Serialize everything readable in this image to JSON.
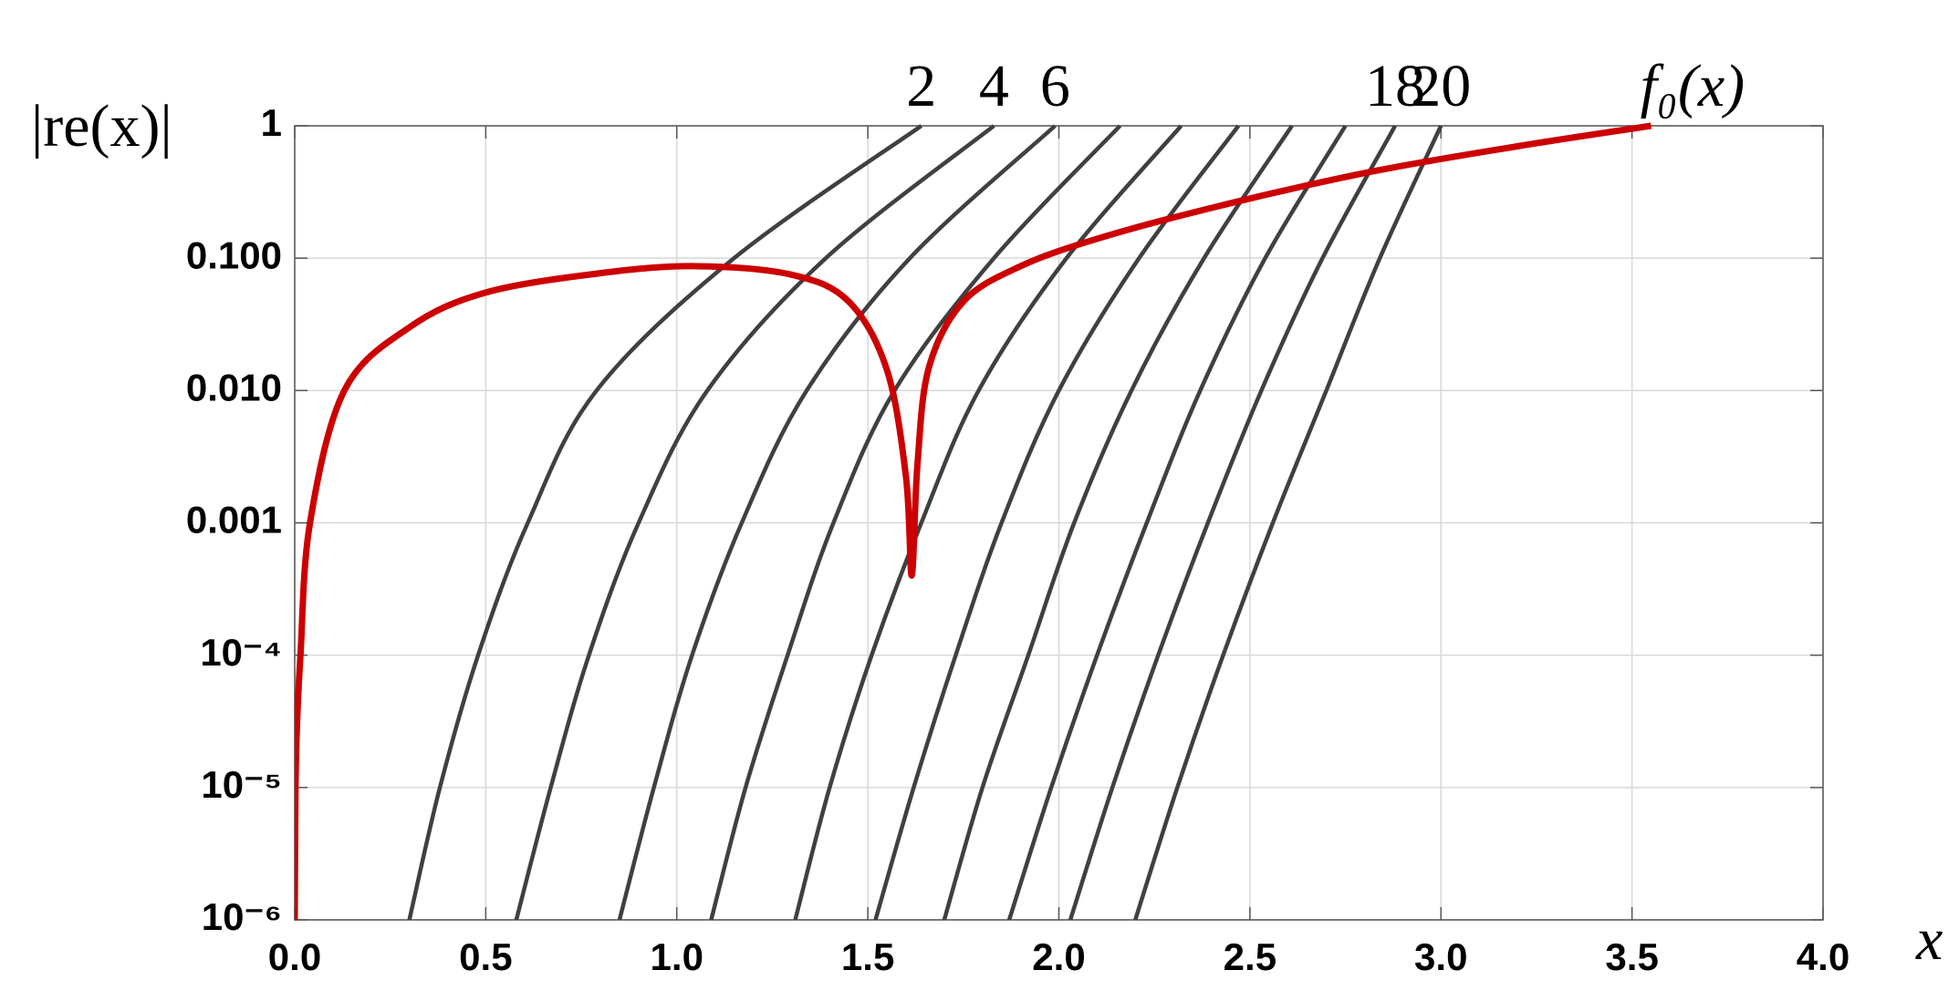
{
  "chart_data": {
    "type": "line",
    "y_label": "|re(x)|",
    "x_label": "x",
    "log_y": true,
    "grid": true,
    "xlim": [
      0,
      4
    ],
    "ylim": [
      1e-06,
      1
    ],
    "xticks": [
      {
        "value": 0,
        "label": "0.0"
      },
      0.5,
      {
        "value": 1,
        "label": "1.0"
      },
      1.5,
      {
        "value": 2,
        "label": "2.0"
      },
      2.5,
      {
        "value": 3,
        "label": "3.0"
      },
      3.5,
      {
        "value": 4,
        "label": "4.0"
      }
    ],
    "yticks": [
      {
        "value": 1e-06,
        "label": "10⁻⁶"
      },
      {
        "value": 1e-05,
        "label": "10⁻⁵"
      },
      {
        "value": 0.0001,
        "label": "10⁻⁴"
      },
      {
        "value": 0.001,
        "label": "0.001"
      },
      {
        "value": 0.01,
        "label": "0.010"
      },
      {
        "value": 0.1,
        "label": "0.100"
      },
      1
    ],
    "series": [
      {
        "name": "2",
        "color": "#404040",
        "x": [
          0.3,
          0.38,
          0.48,
          0.61,
          0.79,
          1.15,
          1.64
        ],
        "values": [
          1e-06,
          1e-05,
          0.0001,
          0.001,
          0.01,
          0.1,
          1
        ]
      },
      {
        "name": "4",
        "color": "#404040",
        "x": [
          0.58,
          0.67,
          0.77,
          0.9,
          1.08,
          1.39,
          1.83
        ],
        "values": [
          1e-06,
          1e-05,
          0.0001,
          0.001,
          0.01,
          0.1,
          1
        ]
      },
      {
        "name": "6",
        "color": "#404040",
        "x": [
          0.85,
          0.94,
          1.04,
          1.17,
          1.34,
          1.61,
          1.99
        ],
        "values": [
          1e-06,
          1e-05,
          0.0001,
          0.001,
          0.01,
          0.1,
          1
        ]
      },
      {
        "color": "#404040",
        "x": [
          1.09,
          1.18,
          1.29,
          1.41,
          1.57,
          1.83,
          2.16
        ],
        "values": [
          1e-06,
          1e-05,
          0.0001,
          0.001,
          0.01,
          0.1,
          1
        ]
      },
      {
        "color": "#404040",
        "x": [
          1.31,
          1.4,
          1.51,
          1.64,
          1.79,
          2.02,
          2.32
        ],
        "values": [
          1e-06,
          1e-05,
          0.0001,
          0.001,
          0.01,
          0.1,
          1
        ]
      },
      {
        "color": "#404040",
        "x": [
          1.52,
          1.62,
          1.73,
          1.85,
          2.0,
          2.21,
          2.47
        ],
        "values": [
          1e-06,
          1e-05,
          0.0001,
          0.001,
          0.01,
          0.1,
          1
        ]
      },
      {
        "color": "#404040",
        "x": [
          1.7,
          1.8,
          1.92,
          2.04,
          2.19,
          2.38,
          2.61
        ],
        "values": [
          1e-06,
          1e-05,
          0.0001,
          0.001,
          0.01,
          0.1,
          1
        ]
      },
      {
        "color": "#404040",
        "x": [
          1.87,
          1.98,
          2.1,
          2.23,
          2.37,
          2.54,
          2.75
        ],
        "values": [
          1e-06,
          1e-05,
          0.0001,
          0.001,
          0.01,
          0.1,
          1
        ]
      },
      {
        "name": "18",
        "color": "#404040",
        "x": [
          2.03,
          2.14,
          2.26,
          2.39,
          2.53,
          2.69,
          2.88
        ],
        "values": [
          1e-06,
          1e-05,
          0.0001,
          0.001,
          0.01,
          0.1,
          1
        ]
      },
      {
        "name": "20",
        "color": "#404040",
        "x": [
          2.2,
          2.31,
          2.43,
          2.56,
          2.7,
          2.84,
          3.0
        ],
        "values": [
          1e-06,
          1e-05,
          0.0001,
          0.001,
          0.01,
          0.1,
          1
        ]
      },
      {
        "name": "f₀(x)",
        "color": "#cc0000",
        "x": [
          0,
          0.002,
          0.006,
          0.015,
          0.04,
          0.13,
          0.3,
          0.5,
          0.8,
          1.05,
          1.3,
          1.45,
          1.55,
          1.6,
          1.615,
          1.63,
          1.66,
          1.75,
          1.9,
          2.1,
          2.4,
          2.8,
          3.2,
          3.55
        ],
        "values": [
          1e-06,
          1e-05,
          3e-05,
          0.0001,
          0.001,
          0.01,
          0.03,
          0.055,
          0.077,
          0.087,
          0.075,
          0.047,
          0.0143,
          0.0022,
          0.0004,
          0.0028,
          0.015,
          0.047,
          0.087,
          0.14,
          0.24,
          0.44,
          0.7,
          1
        ]
      }
    ]
  }
}
